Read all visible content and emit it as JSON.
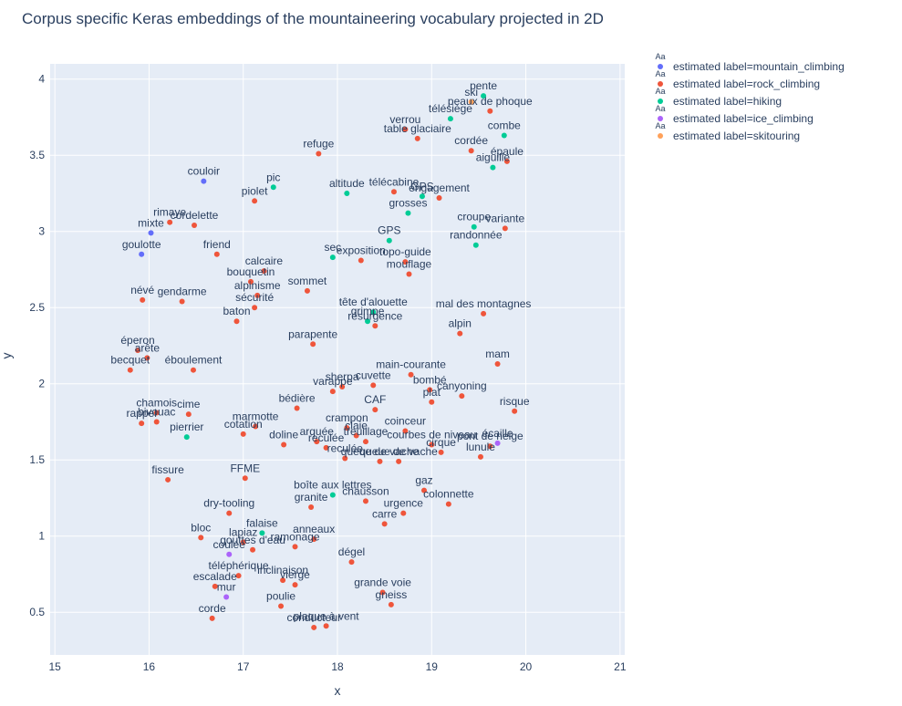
{
  "chart_data": {
    "type": "scatter",
    "title": "Corpus specific Keras embeddings of the mountaineering vocabulary projected in 2D",
    "xlabel": "x",
    "ylabel": "y",
    "xlim": [
      14.95,
      21.05
    ],
    "ylim": [
      0.22,
      4.1
    ],
    "xticks": [
      15,
      16,
      17,
      18,
      19,
      20,
      21
    ],
    "yticks": [
      0.5,
      1,
      1.5,
      2,
      2.5,
      3,
      3.5,
      4
    ],
    "legend_position": "top-right",
    "legend_symbol_text": "Aa",
    "grid": true,
    "series": [
      {
        "name": "estimated label=mountain_climbing",
        "color": "#636efa",
        "points": [
          {
            "x": 16.58,
            "y": 3.33,
            "label": "couloir"
          },
          {
            "x": 16.02,
            "y": 2.99,
            "label": "mixte"
          },
          {
            "x": 15.92,
            "y": 2.85,
            "label": "goulotte"
          }
        ]
      },
      {
        "name": "estimated label=rock_climbing",
        "color": "#ef553b",
        "points": [
          {
            "x": 19.62,
            "y": 3.79,
            "label": "peaux de phoque"
          },
          {
            "x": 18.72,
            "y": 3.67,
            "label": "verrou"
          },
          {
            "x": 18.85,
            "y": 3.61,
            "label": "table glaciaire"
          },
          {
            "x": 17.8,
            "y": 3.51,
            "label": "refuge"
          },
          {
            "x": 19.42,
            "y": 3.53,
            "label": "cordée"
          },
          {
            "x": 19.8,
            "y": 3.46,
            "label": "épaule"
          },
          {
            "x": 18.6,
            "y": 3.26,
            "label": "télécabine"
          },
          {
            "x": 19.08,
            "y": 3.22,
            "label": "engagement"
          },
          {
            "x": 17.12,
            "y": 3.2,
            "label": "piolet"
          },
          {
            "x": 16.22,
            "y": 3.06,
            "label": "rimaye"
          },
          {
            "x": 16.48,
            "y": 3.04,
            "label": "cordelette"
          },
          {
            "x": 19.78,
            "y": 3.02,
            "label": "variante"
          },
          {
            "x": 16.72,
            "y": 2.85,
            "label": "friend"
          },
          {
            "x": 18.25,
            "y": 2.81,
            "label": "exposition"
          },
          {
            "x": 18.72,
            "y": 2.8,
            "label": "topo-guide"
          },
          {
            "x": 18.76,
            "y": 2.72,
            "label": "mouflage"
          },
          {
            "x": 17.22,
            "y": 2.74,
            "label": "calcaire"
          },
          {
            "x": 17.08,
            "y": 2.67,
            "label": "bouquetin"
          },
          {
            "x": 17.68,
            "y": 2.61,
            "label": "sommet"
          },
          {
            "x": 17.15,
            "y": 2.58,
            "label": "alpinisme"
          },
          {
            "x": 15.93,
            "y": 2.55,
            "label": "névé"
          },
          {
            "x": 16.35,
            "y": 2.54,
            "label": "gendarme"
          },
          {
            "x": 17.12,
            "y": 2.5,
            "label": "sécurité"
          },
          {
            "x": 19.55,
            "y": 2.46,
            "label": "mal des montagnes"
          },
          {
            "x": 16.93,
            "y": 2.41,
            "label": "baton"
          },
          {
            "x": 18.4,
            "y": 2.38,
            "label": "résurgence"
          },
          {
            "x": 19.3,
            "y": 2.33,
            "label": "alpin"
          },
          {
            "x": 17.74,
            "y": 2.26,
            "label": "parapente"
          },
          {
            "x": 15.88,
            "y": 2.22,
            "label": "éperon"
          },
          {
            "x": 15.98,
            "y": 2.17,
            "label": "arête"
          },
          {
            "x": 19.7,
            "y": 2.13,
            "label": "mam"
          },
          {
            "x": 15.8,
            "y": 2.09,
            "label": "becquet"
          },
          {
            "x": 16.47,
            "y": 2.09,
            "label": "éboulement"
          },
          {
            "x": 18.78,
            "y": 2.06,
            "label": "main-courante"
          },
          {
            "x": 18.38,
            "y": 1.99,
            "label": "cuvette"
          },
          {
            "x": 17.95,
            "y": 1.95,
            "label": "varappe"
          },
          {
            "x": 18.05,
            "y": 1.98,
            "label": "sherpa"
          },
          {
            "x": 18.98,
            "y": 1.96,
            "label": "bombé"
          },
          {
            "x": 19.32,
            "y": 1.92,
            "label": "canyoning"
          },
          {
            "x": 19.0,
            "y": 1.88,
            "label": "plat"
          },
          {
            "x": 17.57,
            "y": 1.84,
            "label": "bédière"
          },
          {
            "x": 18.4,
            "y": 1.83,
            "label": "CAF"
          },
          {
            "x": 19.88,
            "y": 1.82,
            "label": "risque"
          },
          {
            "x": 16.42,
            "y": 1.8,
            "label": "cime"
          },
          {
            "x": 16.08,
            "y": 1.81,
            "label": "chamois"
          },
          {
            "x": 16.08,
            "y": 1.75,
            "label": "bivouac"
          },
          {
            "x": 15.92,
            "y": 1.74,
            "label": "rappel"
          },
          {
            "x": 17.13,
            "y": 1.72,
            "label": "marmotte"
          },
          {
            "x": 17.0,
            "y": 1.67,
            "label": "cotation"
          },
          {
            "x": 18.1,
            "y": 1.71,
            "label": "crampon"
          },
          {
            "x": 18.72,
            "y": 1.69,
            "label": "coinceur"
          },
          {
            "x": 18.2,
            "y": 1.66,
            "label": "claie"
          },
          {
            "x": 18.3,
            "y": 1.62,
            "label": "treuillage"
          },
          {
            "x": 17.43,
            "y": 1.6,
            "label": "doline"
          },
          {
            "x": 17.78,
            "y": 1.62,
            "label": "arquée"
          },
          {
            "x": 19.0,
            "y": 1.6,
            "label": "courbes de niveau"
          },
          {
            "x": 19.62,
            "y": 1.59,
            "label": "pont de neige"
          },
          {
            "x": 17.88,
            "y": 1.58,
            "label": "reculée"
          },
          {
            "x": 19.1,
            "y": 1.55,
            "label": "cirque"
          },
          {
            "x": 19.52,
            "y": 1.52,
            "label": "lunule"
          },
          {
            "x": 18.08,
            "y": 1.51,
            "label": "reculée"
          },
          {
            "x": 18.45,
            "y": 1.49,
            "label": "queue de vache"
          },
          {
            "x": 18.65,
            "y": 1.49,
            "label": "queue de vache"
          },
          {
            "x": 17.02,
            "y": 1.38,
            "label": "FFME"
          },
          {
            "x": 16.2,
            "y": 1.37,
            "label": "fissure"
          },
          {
            "x": 18.92,
            "y": 1.3,
            "label": "gaz"
          },
          {
            "x": 18.3,
            "y": 1.23,
            "label": "chausson"
          },
          {
            "x": 19.18,
            "y": 1.21,
            "label": "colonnette"
          },
          {
            "x": 17.72,
            "y": 1.19,
            "label": "granite"
          },
          {
            "x": 18.7,
            "y": 1.15,
            "label": "urgence"
          },
          {
            "x": 16.85,
            "y": 1.15,
            "label": "dry-tooling"
          },
          {
            "x": 18.5,
            "y": 1.08,
            "label": "carre"
          },
          {
            "x": 16.55,
            "y": 0.99,
            "label": "bloc"
          },
          {
            "x": 17.75,
            "y": 0.98,
            "label": "anneaux"
          },
          {
            "x": 17.0,
            "y": 0.96,
            "label": "lapiaz"
          },
          {
            "x": 17.1,
            "y": 0.91,
            "label": "gouttes d'eau"
          },
          {
            "x": 17.55,
            "y": 0.93,
            "label": "ramonage"
          },
          {
            "x": 18.15,
            "y": 0.83,
            "label": "dégel"
          },
          {
            "x": 16.95,
            "y": 0.74,
            "label": "téléphérique"
          },
          {
            "x": 17.42,
            "y": 0.71,
            "label": "inclinaison"
          },
          {
            "x": 17.55,
            "y": 0.68,
            "label": "vierge"
          },
          {
            "x": 16.7,
            "y": 0.67,
            "label": "escalade"
          },
          {
            "x": 18.48,
            "y": 0.63,
            "label": "grande voie"
          },
          {
            "x": 18.57,
            "y": 0.55,
            "label": "gneiss"
          },
          {
            "x": 17.4,
            "y": 0.54,
            "label": "poulie"
          },
          {
            "x": 16.67,
            "y": 0.46,
            "label": "corde"
          },
          {
            "x": 17.75,
            "y": 0.4,
            "label": "conducteur"
          },
          {
            "x": 17.88,
            "y": 0.41,
            "label": "plaque à vent"
          }
        ]
      },
      {
        "name": "estimated label=hiking",
        "color": "#00cc96",
        "points": [
          {
            "x": 19.55,
            "y": 3.89,
            "label": "pente"
          },
          {
            "x": 19.2,
            "y": 3.74,
            "label": "télésiège"
          },
          {
            "x": 19.77,
            "y": 3.63,
            "label": "combe"
          },
          {
            "x": 19.65,
            "y": 3.42,
            "label": "aiguille"
          },
          {
            "x": 17.32,
            "y": 3.29,
            "label": "pic"
          },
          {
            "x": 18.1,
            "y": 3.25,
            "label": "altitude"
          },
          {
            "x": 18.9,
            "y": 3.23,
            "label": "GPS"
          },
          {
            "x": 18.75,
            "y": 3.12,
            "label": "grosses"
          },
          {
            "x": 19.45,
            "y": 3.03,
            "label": "croupe"
          },
          {
            "x": 18.55,
            "y": 2.94,
            "label": "GPS"
          },
          {
            "x": 19.47,
            "y": 2.91,
            "label": "randonnée"
          },
          {
            "x": 17.95,
            "y": 2.83,
            "label": "sec"
          },
          {
            "x": 18.38,
            "y": 2.47,
            "label": "tête d'alouette"
          },
          {
            "x": 18.32,
            "y": 2.41,
            "label": "grimpe"
          },
          {
            "x": 16.4,
            "y": 1.65,
            "label": "pierrier"
          },
          {
            "x": 17.95,
            "y": 1.27,
            "label": "boîte aux lettres"
          },
          {
            "x": 17.2,
            "y": 1.02,
            "label": "falaise"
          }
        ]
      },
      {
        "name": "estimated label=ice_climbing",
        "color": "#ab63fa",
        "points": [
          {
            "x": 19.7,
            "y": 1.61,
            "label": "écaille"
          },
          {
            "x": 16.85,
            "y": 0.88,
            "label": "coulée"
          },
          {
            "x": 16.82,
            "y": 0.6,
            "label": "mur"
          }
        ]
      },
      {
        "name": "estimated label=skitouring",
        "color": "#ffa15a",
        "points": [
          {
            "x": 19.42,
            "y": 3.85,
            "label": "ski"
          }
        ]
      }
    ]
  }
}
